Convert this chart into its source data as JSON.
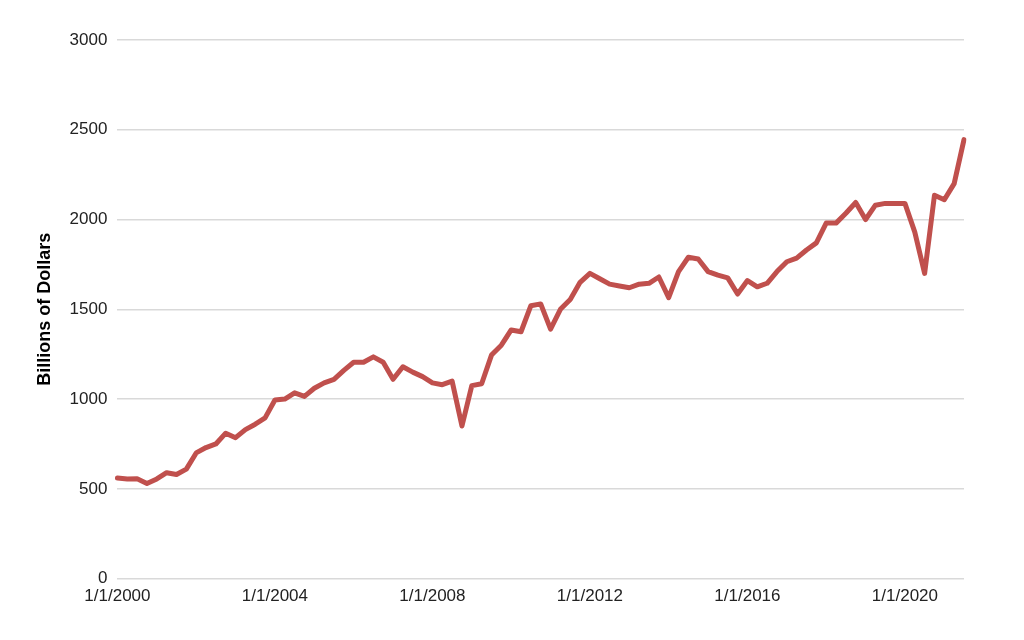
{
  "chart_data": {
    "type": "line",
    "ylabel": "Billions of Dollars",
    "categories": [
      "1/1/2000",
      null,
      null,
      null,
      null,
      null,
      null,
      null,
      null,
      null,
      null,
      null,
      null,
      null,
      null,
      null,
      "1/1/2004",
      null,
      null,
      null,
      null,
      null,
      null,
      null,
      null,
      null,
      null,
      null,
      null,
      null,
      null,
      null,
      "1/1/2008",
      null,
      null,
      null,
      null,
      null,
      null,
      null,
      null,
      null,
      null,
      null,
      null,
      null,
      null,
      null,
      "1/1/2012",
      null,
      null,
      null,
      null,
      null,
      null,
      null,
      null,
      null,
      null,
      null,
      null,
      null,
      null,
      null,
      "1/1/2016",
      null,
      null,
      null,
      null,
      null,
      null,
      null,
      null,
      null,
      null,
      null,
      null,
      null,
      null,
      null,
      "1/1/2020",
      null,
      null,
      null,
      null,
      null,
      null
    ],
    "series": [
      {
        "color": "#c0504d",
        "values": [
          560,
          555,
          556,
          530,
          555,
          590,
          580,
          610,
          700,
          730,
          750,
          810,
          785,
          830,
          860,
          895,
          995,
          1000,
          1035,
          1015,
          1060,
          1090,
          1110,
          1160,
          1205,
          1205,
          1235,
          1205,
          1110,
          1180,
          1150,
          1125,
          1090,
          1080,
          1100,
          850,
          1075,
          1085,
          1245,
          1300,
          1385,
          1375,
          1520,
          1530,
          1390,
          1500,
          1555,
          1650,
          1700,
          1670,
          1640,
          1630,
          1620,
          1640,
          1645,
          1680,
          1565,
          1710,
          1790,
          1780,
          1710,
          1690,
          1675,
          1585,
          1660,
          1625,
          1645,
          1710,
          1765,
          1785,
          1830,
          1870,
          1980,
          1980,
          2035,
          2095,
          2000,
          2080,
          2090,
          2090,
          2090,
          1930,
          1700,
          2135,
          2110,
          2200,
          2445
        ]
      }
    ],
    "ylim": [
      0,
      3000
    ],
    "yticks": [
      0,
      500,
      1000,
      1500,
      2000,
      2500,
      3000
    ],
    "grid": "y",
    "legend": false,
    "marker": "none",
    "line_style": "solid"
  }
}
